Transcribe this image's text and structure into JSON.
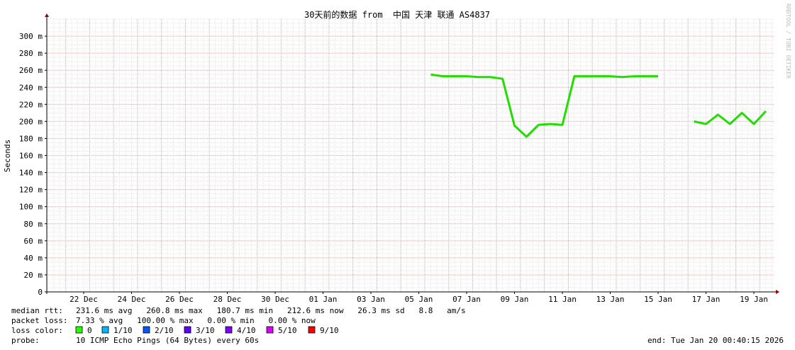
{
  "chart_data": {
    "type": "line",
    "title": "30天前的数据 from  中国 天津 联通 AS4837",
    "y_label": "Seconds",
    "watermark": "RRDTOOL / TOBI OETIKER",
    "categories": [
      null,
      null,
      null,
      "22 Dec",
      null,
      null,
      null,
      "24 Dec",
      null,
      null,
      null,
      "26 Dec",
      null,
      null,
      null,
      "28 Dec",
      null,
      null,
      null,
      "30 Dec",
      null,
      null,
      null,
      "01 Jan",
      null,
      null,
      null,
      "03 Jan",
      null,
      null,
      null,
      "05 Jan",
      null,
      null,
      null,
      "07 Jan",
      null,
      null,
      null,
      "09 Jan",
      null,
      null,
      null,
      "11 Jan",
      null,
      null,
      null,
      "13 Jan",
      null,
      null,
      null,
      "15 Jan",
      null,
      null,
      null,
      "17 Jan",
      null,
      null,
      null,
      "19 Jan",
      null
    ],
    "values": [
      null,
      null,
      null,
      null,
      null,
      null,
      null,
      null,
      null,
      null,
      null,
      null,
      null,
      null,
      null,
      null,
      null,
      null,
      null,
      null,
      null,
      null,
      null,
      null,
      null,
      null,
      null,
      null,
      null,
      null,
      null,
      null,
      0.255,
      0.253,
      0.253,
      0.253,
      0.252,
      0.252,
      0.25,
      0.195,
      0.182,
      0.196,
      0.197,
      0.196,
      0.253,
      0.253,
      0.253,
      0.253,
      0.252,
      0.253,
      0.253,
      0.253,
      null,
      null,
      0.2,
      0.197,
      0.208,
      0.197,
      0.21,
      0.197,
      0.212
    ],
    "color": "#22dd00",
    "ylim": [
      0,
      0.32
    ],
    "yticks": [
      0,
      {
        "value": 0.02,
        "label": "20 m"
      },
      {
        "value": 0.04,
        "label": "40 m"
      },
      {
        "value": 0.06,
        "label": "60 m"
      },
      {
        "value": 0.08,
        "label": "80 m"
      },
      {
        "value": 0.1,
        "label": "100 m"
      },
      {
        "value": 0.12,
        "label": "120 m"
      },
      {
        "value": 0.14,
        "label": "140 m"
      },
      {
        "value": 0.16,
        "label": "160 m"
      },
      {
        "value": 0.18,
        "label": "180 m"
      },
      {
        "value": 0.2,
        "label": "200 m"
      },
      {
        "value": 0.22,
        "label": "220 m"
      },
      {
        "value": 0.24,
        "label": "240 m"
      },
      {
        "value": 0.26,
        "label": "260 m"
      },
      {
        "value": 0.28,
        "label": "280 m"
      },
      {
        "value": 0.3,
        "label": "300 m"
      }
    ],
    "grid": true
  },
  "legend": {
    "rtt_label": "median rtt:",
    "rtt": "231.6 ms avg   260.8 ms max   180.7 ms min   212.6 ms now   26.3 ms sd   8.8   am/s",
    "loss_label": "packet loss:",
    "loss": "7.33 % avg   100.00 % max   0.00 % min   0.00 % now",
    "color_label": "loss color:",
    "colors": [
      {
        "label": "0",
        "color": "#26ff00"
      },
      {
        "label": "1/10",
        "color": "#00b8ff"
      },
      {
        "label": "2/10",
        "color": "#0059ff"
      },
      {
        "label": "3/10",
        "color": "#5e00ff"
      },
      {
        "label": "4/10",
        "color": "#7e00ff"
      },
      {
        "label": "5/10",
        "color": "#dd00ff"
      },
      {
        "label": "9/10",
        "color": "#ff0000"
      }
    ],
    "probe_label": "probe:",
    "probe": "10 ICMP Echo Pings (64 Bytes) every 60s",
    "end": "end: Tue Jan 20 00:40:15 2026"
  }
}
